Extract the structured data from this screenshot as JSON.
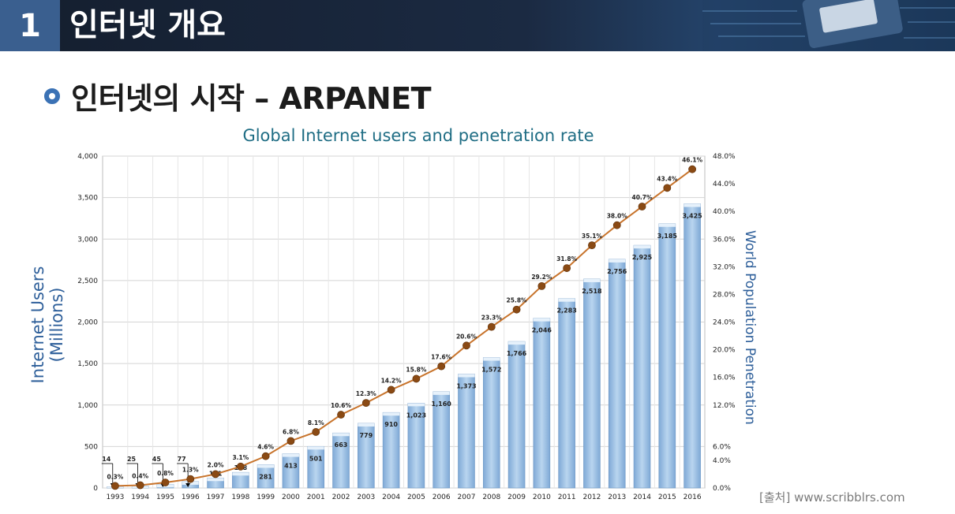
{
  "header": {
    "number": "1",
    "title": "인터넷 개요"
  },
  "subtitle": "인터넷의 시작 – ARPANET",
  "source": "[출처] www.scribblrs.com",
  "colors": {
    "header_bg": "#1b2a42",
    "number_box": "#3a5f8f",
    "bar": "#9fc3e6",
    "line": "#c8742c",
    "marker": "#8a4a14",
    "title": "#1f6d84",
    "axis_label": "#2e5f9a"
  },
  "chart_data": {
    "type": "bar",
    "title": "Global Internet users and penetration rate",
    "ylabel": "Internet Users (Millions)",
    "y2label": "World Population Penetration",
    "categories": [
      "1993",
      "1994",
      "1995",
      "1996",
      "1997",
      "1998",
      "1999",
      "2000",
      "2001",
      "2002",
      "2003",
      "2004",
      "2005",
      "2006",
      "2007",
      "2008",
      "2009",
      "2010",
      "2011",
      "2012",
      "2013",
      "2014",
      "2015",
      "2016"
    ],
    "series": [
      {
        "values": [
          14,
          25,
          45,
          77,
          121,
          188,
          281,
          413,
          501,
          663,
          779,
          910,
          1023,
          1160,
          1373,
          1572,
          1766,
          2046,
          2283,
          2518,
          2756,
          2925,
          3185,
          3425
        ],
        "value_labels": [
          "14",
          "25",
          "45",
          "77",
          "121",
          "188",
          "281",
          "413",
          "501",
          "663",
          "779",
          "910",
          "1,023",
          "1,160",
          "1,373",
          "1,572",
          "1,766",
          "2,046",
          "2,283",
          "2,518",
          "2,756",
          "2,925",
          "3,185",
          "3,425"
        ]
      },
      {
        "type": "line",
        "axis": "right",
        "values": [
          0.3,
          0.4,
          0.8,
          1.3,
          2.0,
          3.1,
          4.6,
          6.8,
          8.1,
          10.6,
          12.3,
          14.2,
          15.8,
          17.6,
          20.6,
          23.3,
          25.8,
          29.2,
          31.8,
          35.1,
          38.0,
          40.7,
          43.4,
          46.1
        ],
        "value_labels": [
          "0.3%",
          "0.4%",
          "0.8%",
          "1.3%",
          "2.0%",
          "3.1%",
          "4.6%",
          "6.8%",
          "8.1%",
          "10.6%",
          "12.3%",
          "14.2%",
          "15.8%",
          "17.6%",
          "20.6%",
          "23.3%",
          "25.8%",
          "29.2%",
          "31.8%",
          "35.1%",
          "38.0%",
          "40.7%",
          "43.4%",
          "46.1%"
        ]
      }
    ],
    "ylim": [
      0,
      4000
    ],
    "y_ticks": [
      "0",
      "500",
      "1,000",
      "1,500",
      "2,000",
      "2,500",
      "3,000",
      "3,500",
      "4,000"
    ],
    "y2lim": [
      0,
      48
    ],
    "y2_ticks": [
      "0.0%",
      "4.0%",
      "6.0%",
      "12.0%",
      "16.0%",
      "20.0%",
      "24.0%",
      "28.0%",
      "32.0%",
      "36.0%",
      "40.0%",
      "44.0%",
      "48.0%"
    ],
    "grid": true
  }
}
